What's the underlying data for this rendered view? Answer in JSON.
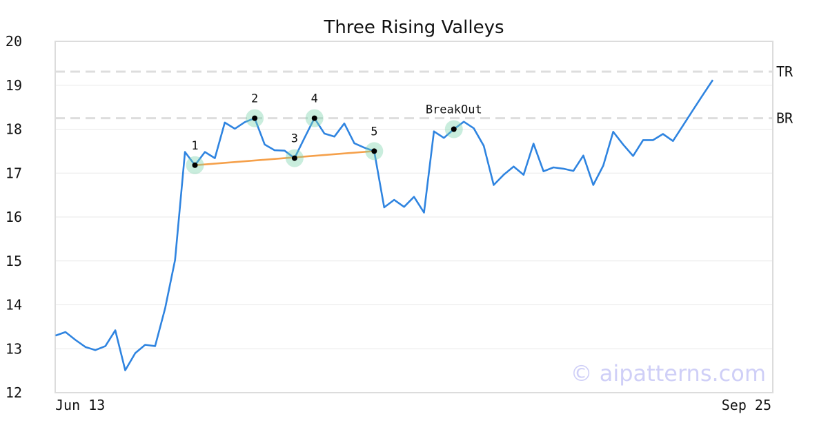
{
  "chart_data": {
    "type": "line",
    "title": "Three Rising Valleys",
    "xlabel": "",
    "ylabel": "",
    "x_tick_labels": [
      "Jun 13",
      "Sep 25"
    ],
    "ylim": [
      12,
      20
    ],
    "y_ticks": [
      12,
      13,
      14,
      15,
      16,
      17,
      18,
      19,
      20
    ],
    "grid": "horizontal",
    "series": [
      {
        "color": "#2f84e0",
        "values": [
          13.3,
          13.38,
          13.2,
          13.04,
          12.97,
          13.06,
          13.42,
          12.51,
          12.9,
          13.09,
          13.06,
          13.92,
          15.02,
          17.48,
          17.18,
          17.48,
          17.34,
          18.15,
          18.01,
          18.16,
          18.25,
          17.65,
          17.52,
          17.51,
          17.34,
          17.8,
          18.25,
          17.9,
          17.83,
          18.13,
          17.68,
          17.58,
          17.5,
          16.22,
          16.39,
          16.23,
          16.46,
          16.1,
          17.95,
          17.8,
          18.0,
          18.17,
          18.02,
          17.62,
          16.73,
          16.96,
          17.15,
          16.96,
          17.67,
          17.04,
          17.13,
          17.1,
          17.05,
          17.4,
          16.73,
          17.17,
          17.94,
          17.65,
          17.39,
          17.75,
          17.75,
          17.89,
          17.73,
          18.08,
          18.43,
          18.78,
          19.12
        ]
      }
    ],
    "reference_lines": [
      {
        "label": "TR",
        "value": 19.31,
        "color": "#dddddd"
      },
      {
        "label": "BR",
        "value": 18.25,
        "color": "#dddddd"
      }
    ],
    "marked_points": [
      {
        "label": "1",
        "index": 14,
        "value": 17.18
      },
      {
        "label": "2",
        "index": 20,
        "value": 18.25
      },
      {
        "label": "3",
        "index": 24,
        "value": 17.34
      },
      {
        "label": "4",
        "index": 26,
        "value": 18.25
      },
      {
        "label": "5",
        "index": 32,
        "value": 17.5
      },
      {
        "label": "BreakOut",
        "index": 40,
        "value": 18.0
      }
    ],
    "trendline": {
      "from_point": "1",
      "to_point": "5",
      "color": "#f5a04a"
    },
    "watermark": "© aipatterns.com"
  }
}
